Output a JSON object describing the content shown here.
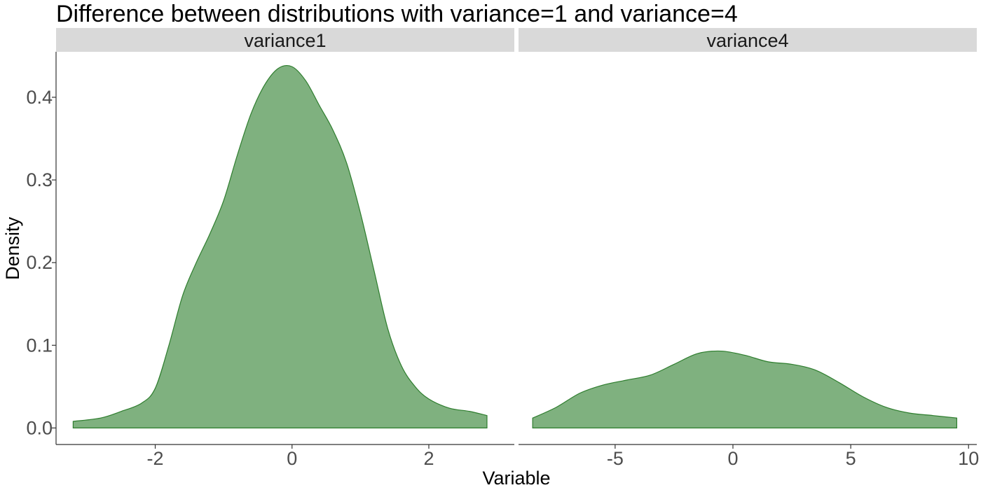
{
  "chart_data": {
    "type": "area",
    "title": "Difference between distributions with variance=1 and variance=4",
    "xlabel": "Variable",
    "ylabel": "Density",
    "ylim": [
      -0.02,
      0.455
    ],
    "y_ticks": [
      0.0,
      0.1,
      0.2,
      0.3,
      0.4
    ],
    "y_tick_labels": [
      "0.0",
      "0.1",
      "0.2",
      "0.3",
      "0.4"
    ],
    "grid": false,
    "fill_color": "#7fb17f",
    "line_color": "#2e7d2e",
    "strip_color": "#d9d9d9",
    "axis_color": "#333333",
    "panels": [
      {
        "strip_label": "variance1",
        "xlim": [
          -3.45,
          3.25
        ],
        "x_ticks": [
          -2,
          0,
          2
        ],
        "x_tick_labels": [
          "-2",
          "0",
          "2"
        ],
        "points": [
          [
            -3.2,
            0.008
          ],
          [
            -2.8,
            0.012
          ],
          [
            -2.5,
            0.02
          ],
          [
            -2.2,
            0.03
          ],
          [
            -2.0,
            0.048
          ],
          [
            -1.8,
            0.1
          ],
          [
            -1.6,
            0.16
          ],
          [
            -1.4,
            0.2
          ],
          [
            -1.2,
            0.235
          ],
          [
            -1.0,
            0.275
          ],
          [
            -0.8,
            0.33
          ],
          [
            -0.6,
            0.38
          ],
          [
            -0.4,
            0.415
          ],
          [
            -0.2,
            0.435
          ],
          [
            0.0,
            0.437
          ],
          [
            0.2,
            0.42
          ],
          [
            0.4,
            0.39
          ],
          [
            0.6,
            0.36
          ],
          [
            0.8,
            0.32
          ],
          [
            1.0,
            0.26
          ],
          [
            1.2,
            0.19
          ],
          [
            1.4,
            0.12
          ],
          [
            1.6,
            0.075
          ],
          [
            1.8,
            0.05
          ],
          [
            2.0,
            0.035
          ],
          [
            2.3,
            0.024
          ],
          [
            2.6,
            0.02
          ],
          [
            2.85,
            0.015
          ]
        ]
      },
      {
        "strip_label": "variance4",
        "xlim": [
          -9.1,
          10.35
        ],
        "x_ticks": [
          -5,
          0,
          5,
          10
        ],
        "x_tick_labels": [
          "-5",
          "0",
          "5",
          "10"
        ],
        "points": [
          [
            -8.5,
            0.012
          ],
          [
            -7.5,
            0.025
          ],
          [
            -6.5,
            0.042
          ],
          [
            -5.5,
            0.052
          ],
          [
            -4.5,
            0.058
          ],
          [
            -3.5,
            0.064
          ],
          [
            -2.5,
            0.077
          ],
          [
            -1.5,
            0.09
          ],
          [
            -0.5,
            0.093
          ],
          [
            0.5,
            0.088
          ],
          [
            1.5,
            0.08
          ],
          [
            2.5,
            0.077
          ],
          [
            3.5,
            0.07
          ],
          [
            4.5,
            0.055
          ],
          [
            5.5,
            0.038
          ],
          [
            6.5,
            0.025
          ],
          [
            7.5,
            0.018
          ],
          [
            8.5,
            0.015
          ],
          [
            9.5,
            0.012
          ]
        ]
      }
    ]
  }
}
